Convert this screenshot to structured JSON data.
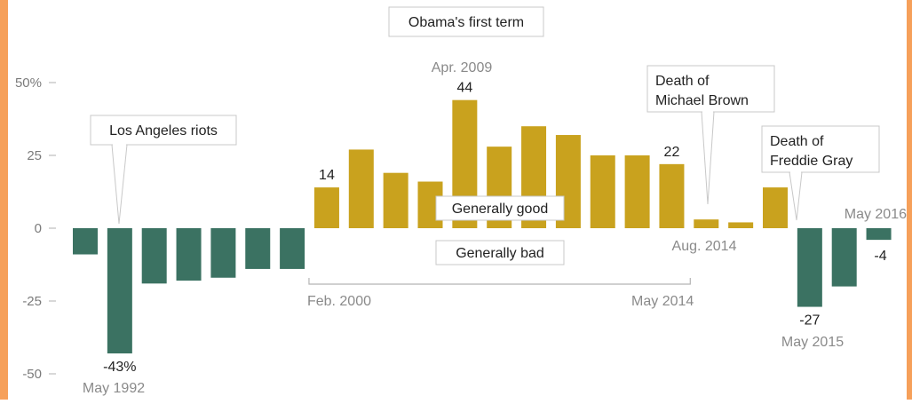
{
  "colors": {
    "good": "#c9a21e",
    "bad": "#3b7262",
    "edge": "#f6a05a"
  },
  "chart_data": {
    "type": "bar",
    "ylim": [
      -50,
      50
    ],
    "yticks": [
      {
        "value": 50,
        "label": "50%"
      },
      {
        "value": 25,
        "label": "25"
      },
      {
        "value": 0,
        "label": "0"
      },
      {
        "value": -25,
        "label": "-25"
      },
      {
        "value": -50,
        "label": "-50"
      }
    ],
    "values": [
      -9,
      -43,
      -19,
      -18,
      -17,
      -14,
      -14,
      14,
      27,
      19,
      16,
      44,
      28,
      35,
      32,
      25,
      25,
      22,
      3,
      2,
      14,
      -27,
      -20,
      -4
    ],
    "value_labels": [
      {
        "index": 1,
        "text": "-43%"
      },
      {
        "index": 7,
        "text": "14"
      },
      {
        "index": 11,
        "text": "44"
      },
      {
        "index": 17,
        "text": "22"
      },
      {
        "index": 21,
        "text": "-27"
      },
      {
        "index": 23,
        "text": "-4"
      }
    ],
    "date_labels": [
      {
        "index": 1,
        "text": "May 1992"
      },
      {
        "index": 11,
        "text": "Apr. 2009"
      },
      {
        "index": 18,
        "text": "Aug. 2014"
      },
      {
        "index": 21,
        "text": "May 2015"
      },
      {
        "index": 23,
        "text": "May 2016"
      }
    ],
    "range_bracket": {
      "from": 7,
      "to": 18,
      "start_label": "Feb. 2000",
      "end_label": "May 2014"
    },
    "legend": {
      "good": "Generally good",
      "bad": "Generally bad"
    },
    "annotations": [
      {
        "id": "la-riots",
        "index": 1,
        "lines": [
          "Los Angeles riots"
        ]
      },
      {
        "id": "obama",
        "index": 11,
        "lines": [
          "Obama's first term"
        ]
      },
      {
        "id": "michael-brown",
        "index": 18,
        "lines": [
          "Death of",
          "Michael Brown"
        ]
      },
      {
        "id": "freddie-gray",
        "index": 21,
        "lines": [
          "Death of",
          "Freddie Gray"
        ]
      }
    ]
  }
}
